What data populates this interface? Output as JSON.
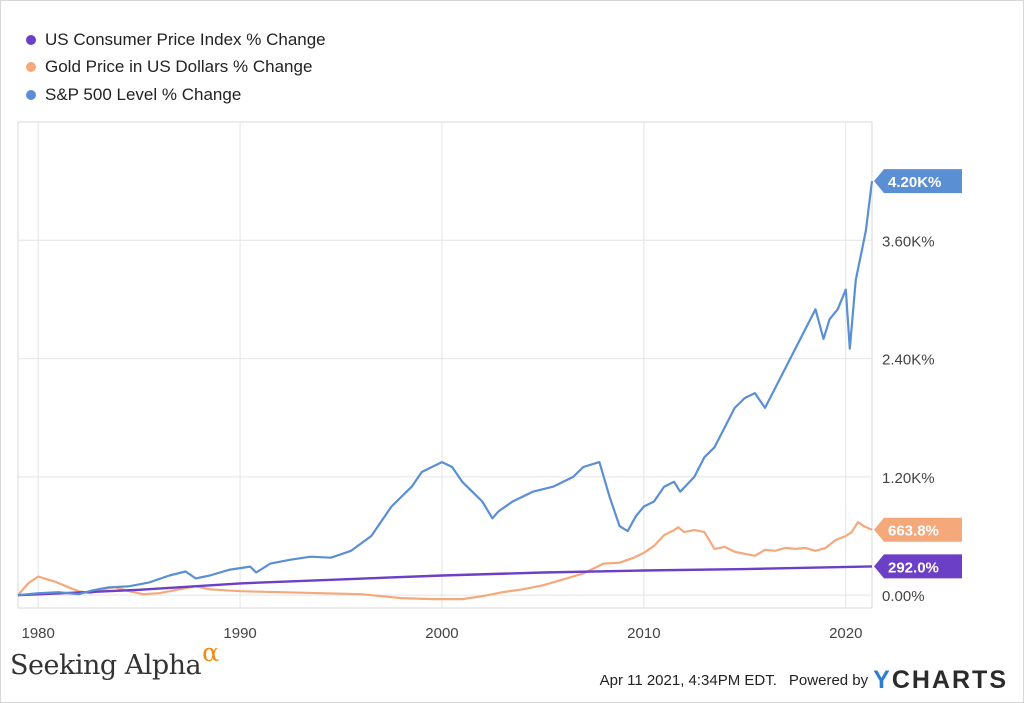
{
  "colors": {
    "cpi": "#6b3fc6",
    "gold": "#f5a97b",
    "sp500": "#5b8fd4",
    "grid": "#e4e4e4",
    "axis_text": "#444444",
    "brand_alpha": "#f08a12",
    "brand_y": "#2e7fd0"
  },
  "legend": [
    {
      "label": "US Consumer Price Index % Change",
      "color": "#6b3fc6"
    },
    {
      "label": "Gold Price in US Dollars % Change",
      "color": "#f5a97b"
    },
    {
      "label": "S&P 500 Level % Change",
      "color": "#5b8fd4"
    }
  ],
  "footer": {
    "logo_text": "Seeking Alpha",
    "logo_symbol": "α",
    "timestamp": "Apr 11 2021, 4:34PM EDT.",
    "powered_by": "Powered by",
    "brand_y": "Y",
    "brand_rest": "CHARTS"
  },
  "chart_data": {
    "type": "line",
    "xlabel": "",
    "ylabel": "",
    "x_ticks": [
      "1980",
      "1990",
      "2000",
      "2010",
      "2020"
    ],
    "y_ticks": [
      "0.00%",
      "1.20K%",
      "2.40K%",
      "3.60K%"
    ],
    "y_tick_values": [
      0,
      1200,
      2400,
      3600
    ],
    "xlim": [
      1979.0,
      2021.3
    ],
    "ylim": [
      -130,
      4800
    ],
    "grid": true,
    "legend_position": "top-left",
    "end_labels": [
      {
        "series": "S&P 500 Level % Change",
        "text": "4.20K%",
        "value": 4200
      },
      {
        "series": "Gold Price in US Dollars % Change",
        "text": "663.8%",
        "value": 663.8
      },
      {
        "series": "US Consumer Price Index % Change",
        "text": "292.0%",
        "value": 292.0
      }
    ],
    "series": [
      {
        "name": "US Consumer Price Index % Change",
        "color": "#6b3fc6",
        "x": [
          1979.0,
          1985,
          1990,
          1995,
          2000,
          2005,
          2010,
          2015,
          2021.3
        ],
        "y": [
          0,
          55,
          120,
          160,
          200,
          230,
          250,
          265,
          292
        ]
      },
      {
        "name": "Gold Price in US Dollars % Change",
        "color": "#f5a97b",
        "x": [
          1979.0,
          1979.5,
          1980.0,
          1980.3,
          1980.8,
          1981.5,
          1982.0,
          1982.6,
          1983.2,
          1983.8,
          1984.5,
          1985.2,
          1986.0,
          1987.0,
          1987.8,
          1988.5,
          1990.0,
          1992.0,
          1994.0,
          1996.0,
          1998.0,
          1999.5,
          2001.0,
          2002.0,
          2003.0,
          2004.0,
          2005.0,
          2006.0,
          2007.0,
          2008.0,
          2008.8,
          2009.5,
          2010.0,
          2010.5,
          2011.0,
          2011.5,
          2011.7,
          2012.0,
          2012.5,
          2013.0,
          2013.5,
          2014.0,
          2014.5,
          2015.0,
          2015.5,
          2016.0,
          2016.5,
          2017.0,
          2017.5,
          2018.0,
          2018.5,
          2019.0,
          2019.5,
          2020.0,
          2020.3,
          2020.6,
          2020.9,
          2021.3
        ],
        "y": [
          0,
          120,
          190,
          170,
          140,
          80,
          40,
          20,
          60,
          80,
          40,
          10,
          20,
          60,
          90,
          60,
          40,
          30,
          20,
          10,
          -30,
          -40,
          -40,
          -10,
          30,
          60,
          100,
          160,
          220,
          320,
          330,
          380,
          430,
          500,
          610,
          660,
          690,
          640,
          660,
          640,
          470,
          490,
          440,
          420,
          400,
          460,
          450,
          480,
          470,
          480,
          450,
          480,
          560,
          600,
          640,
          740,
          700,
          663.8
        ]
      },
      {
        "name": "S&P 500 Level % Change",
        "color": "#5b8fd4",
        "x": [
          1979.0,
          1980.0,
          1981.0,
          1982.0,
          1982.7,
          1983.5,
          1984.5,
          1985.5,
          1986.5,
          1987.3,
          1987.8,
          1988.5,
          1989.5,
          1990.5,
          1990.8,
          1991.5,
          1992.5,
          1993.5,
          1994.5,
          1995.5,
          1996.5,
          1997.5,
          1998.5,
          1999.0,
          1999.5,
          2000.0,
          2000.5,
          2001.0,
          2001.5,
          2002.0,
          2002.5,
          2002.8,
          2003.5,
          2004.5,
          2005.5,
          2006.5,
          2007.0,
          2007.8,
          2008.3,
          2008.8,
          2009.2,
          2009.6,
          2010.0,
          2010.5,
          2011.0,
          2011.5,
          2011.8,
          2012.5,
          2013.0,
          2013.5,
          2014.0,
          2014.5,
          2015.0,
          2015.5,
          2016.0,
          2016.5,
          2017.0,
          2017.5,
          2018.0,
          2018.5,
          2018.9,
          2019.2,
          2019.6,
          2020.0,
          2020.2,
          2020.5,
          2020.8,
          2021.0,
          2021.3
        ],
        "y": [
          0,
          20,
          30,
          10,
          50,
          80,
          90,
          130,
          200,
          240,
          170,
          200,
          260,
          290,
          230,
          320,
          360,
          390,
          380,
          450,
          600,
          900,
          1100,
          1250,
          1300,
          1350,
          1300,
          1150,
          1050,
          950,
          780,
          850,
          950,
          1050,
          1100,
          1200,
          1300,
          1350,
          1000,
          700,
          650,
          800,
          900,
          950,
          1100,
          1150,
          1050,
          1200,
          1400,
          1500,
          1700,
          1900,
          2000,
          2050,
          1900,
          2100,
          2300,
          2500,
          2700,
          2900,
          2600,
          2800,
          2900,
          3100,
          2500,
          3200,
          3500,
          3700,
          4200
        ]
      }
    ]
  }
}
